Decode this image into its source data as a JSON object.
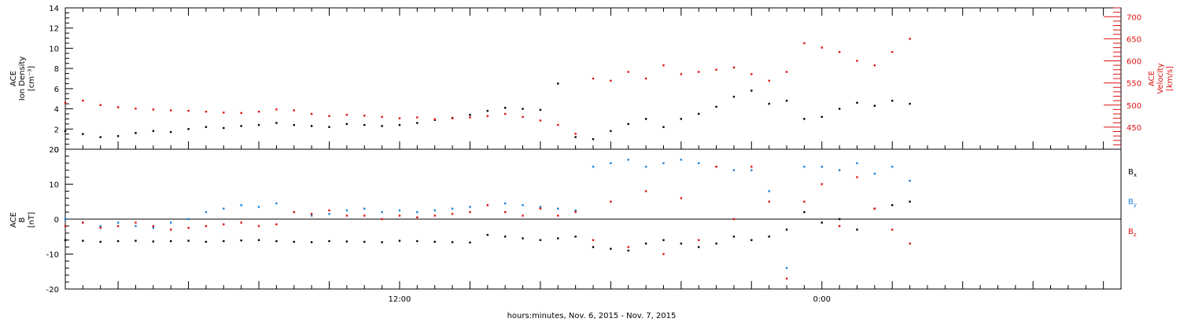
{
  "xaxis": {
    "label": "hours:minutes, Nov.  6, 2015 - Nov.  7, 2015",
    "range_hours": [
      0,
      30
    ],
    "labeled_ticks": [
      {
        "hour": 9.5,
        "label": "12:00"
      },
      {
        "hour": 21.5,
        "label": "0:00"
      }
    ]
  },
  "panel_top": {
    "left_label_lines": [
      "ACE",
      "Ion Density",
      "[cm⁻³]"
    ],
    "right_label_lines": [
      "ACE",
      "Velocity",
      "[km/s]"
    ]
  },
  "panel_bottom": {
    "left_label_lines": [
      "ACE",
      "B",
      "[nT]"
    ],
    "legend": [
      {
        "text": "B",
        "sub": "x",
        "color": "#000000"
      },
      {
        "text": "B",
        "sub": "y",
        "color": "#1a7fd6"
      },
      {
        "text": "B",
        "sub": "z",
        "color": "#e01010"
      }
    ]
  },
  "colors": {
    "black": "#000000",
    "blue": "#1a7fd6",
    "red": "#e01010",
    "axis": "#000000"
  },
  "chart_data": [
    {
      "type": "scatter",
      "panel": "top",
      "x_unit": "hours since Nov 6 2015 02:30",
      "ylim": [
        0,
        14
      ],
      "yticks": [
        0,
        2,
        4,
        6,
        8,
        10,
        12,
        14
      ],
      "y2lim": [
        400,
        720
      ],
      "y2ticks": [
        450,
        500,
        550,
        600,
        650,
        700
      ],
      "series": [
        {
          "name": "Ion Density",
          "axis": "left",
          "color": "#000000",
          "x": [
            0,
            0.5,
            1,
            1.5,
            2,
            2.5,
            3,
            3.5,
            4,
            4.5,
            5,
            5.5,
            6,
            6.5,
            7,
            7.5,
            8,
            8.5,
            9,
            9.5,
            10,
            10.5,
            11,
            11.5,
            12,
            12.5,
            13,
            13.5,
            14,
            14.5,
            15,
            15.5,
            16,
            16.5,
            17,
            17.5,
            18,
            18.5,
            19,
            19.5,
            20,
            20.5,
            21,
            21.5,
            22,
            22.5,
            23,
            23.5,
            24
          ],
          "values": [
            1.8,
            1.5,
            1.2,
            1.3,
            1.6,
            1.8,
            1.7,
            2.0,
            2.2,
            2.1,
            2.3,
            2.4,
            2.6,
            2.4,
            2.3,
            2.2,
            2.5,
            2.4,
            2.3,
            2.4,
            2.6,
            2.9,
            3.1,
            3.4,
            3.8,
            4.1,
            4.0,
            3.9,
            6.5,
            1.2,
            1.0,
            1.8,
            2.5,
            3.0,
            2.2,
            3.0,
            3.5,
            4.2,
            5.2,
            5.8,
            4.5,
            4.8,
            3.0,
            3.2,
            4.0,
            4.6,
            4.3,
            4.8,
            4.5
          ]
        },
        {
          "name": "Velocity",
          "axis": "right",
          "color": "#e01010",
          "x": [
            0,
            0.5,
            1,
            1.5,
            2,
            2.5,
            3,
            3.5,
            4,
            4.5,
            5,
            5.5,
            6,
            6.5,
            7,
            7.5,
            8,
            8.5,
            9,
            9.5,
            10,
            10.5,
            11,
            11.5,
            12,
            12.5,
            13,
            13.5,
            14,
            14.5,
            15,
            15.5,
            16,
            16.5,
            17,
            17.5,
            18,
            18.5,
            19,
            19.5,
            20,
            20.5,
            21,
            21.5,
            22,
            22.5,
            23,
            23.5,
            24
          ],
          "values": [
            505,
            510,
            500,
            495,
            492,
            490,
            488,
            487,
            485,
            483,
            482,
            485,
            490,
            488,
            480,
            475,
            478,
            476,
            473,
            470,
            472,
            468,
            470,
            472,
            475,
            480,
            473,
            465,
            455,
            435,
            560,
            555,
            575,
            560,
            590,
            570,
            575,
            580,
            585,
            570,
            555,
            575,
            640,
            630,
            620,
            600,
            590,
            620,
            650
          ]
        }
      ]
    },
    {
      "type": "scatter",
      "panel": "bottom",
      "x_unit": "hours since Nov 6 2015 02:30",
      "ylim": [
        -20,
        20
      ],
      "yticks": [
        -20,
        -10,
        0,
        10,
        20
      ],
      "series": [
        {
          "name": "Bx",
          "color": "#000000",
          "x": [
            0,
            0.5,
            1,
            1.5,
            2,
            2.5,
            3,
            3.5,
            4,
            4.5,
            5,
            5.5,
            6,
            6.5,
            7,
            7.5,
            8,
            8.5,
            9,
            9.5,
            10,
            10.5,
            11,
            11.5,
            12,
            12.5,
            13,
            13.5,
            14,
            14.5,
            15,
            15.5,
            16,
            16.5,
            17,
            17.5,
            18,
            18.5,
            19,
            19.5,
            20,
            20.5,
            21,
            21.5,
            22,
            22.5,
            23,
            23.5,
            24
          ],
          "values": [
            -6,
            -6.2,
            -6.5,
            -6.3,
            -6.2,
            -6.4,
            -6.3,
            -6.2,
            -6.5,
            -6.3,
            -6.1,
            -6,
            -6.3,
            -6.5,
            -6.6,
            -6.3,
            -6.4,
            -6.5,
            -6.6,
            -6.2,
            -6.3,
            -6.5,
            -6.6,
            -6.7,
            -4.5,
            -5,
            -5.5,
            -6,
            -5.5,
            -5,
            -8,
            -8.5,
            -9,
            -7,
            -6,
            -7,
            -8,
            -7,
            -5,
            -6,
            -5,
            -3,
            2,
            -1,
            0,
            -3,
            3,
            4,
            5
          ]
        },
        {
          "name": "By",
          "color": "#1a7fd6",
          "x": [
            0,
            0.5,
            1,
            1.5,
            2,
            2.5,
            3,
            3.5,
            4,
            4.5,
            5,
            5.5,
            6,
            6.5,
            7,
            7.5,
            8,
            8.5,
            9,
            9.5,
            10,
            10.5,
            11,
            11.5,
            12,
            12.5,
            13,
            13.5,
            14,
            14.5,
            15,
            15.5,
            16,
            16.5,
            17,
            17.5,
            18,
            18.5,
            19,
            19.5,
            20,
            20.5,
            21,
            21.5,
            22,
            22.5,
            23,
            23.5,
            24
          ],
          "values": [
            0,
            -1,
            -2,
            -1,
            -2,
            -2.5,
            -1,
            0,
            2,
            3,
            4,
            3.5,
            4.5,
            2,
            1,
            1.5,
            2.5,
            3,
            2,
            2.5,
            2,
            2.5,
            3,
            3.5,
            4,
            4.5,
            4,
            3.5,
            3,
            2.5,
            15,
            16,
            17,
            15,
            16,
            17,
            16,
            15,
            14,
            14,
            8,
            -14,
            15,
            15,
            14,
            16,
            13,
            15,
            11
          ]
        },
        {
          "name": "Bz",
          "color": "#e01010",
          "x": [
            0,
            0.5,
            1,
            1.5,
            2,
            2.5,
            3,
            3.5,
            4,
            4.5,
            5,
            5.5,
            6,
            6.5,
            7,
            7.5,
            8,
            8.5,
            9,
            9.5,
            10,
            10.5,
            11,
            11.5,
            12,
            12.5,
            13,
            13.5,
            14,
            14.5,
            15,
            15.5,
            16,
            16.5,
            17,
            17.5,
            18,
            18.5,
            19,
            19.5,
            20,
            20.5,
            21,
            21.5,
            22,
            22.5,
            23,
            23.5,
            24
          ],
          "values": [
            -2,
            -1,
            -2.5,
            -2,
            -1,
            -2,
            -3,
            -2.5,
            -2,
            -1.5,
            -1,
            -2,
            -1.5,
            2,
            1.5,
            2.5,
            1,
            1,
            0,
            1,
            0.5,
            1,
            1.5,
            2,
            4,
            2,
            1,
            3,
            1,
            2,
            -6,
            5,
            -8,
            8,
            -10,
            6,
            -6,
            15,
            0,
            15,
            5,
            -17,
            5,
            10,
            -2,
            12,
            3,
            -3,
            -7
          ]
        }
      ]
    }
  ]
}
